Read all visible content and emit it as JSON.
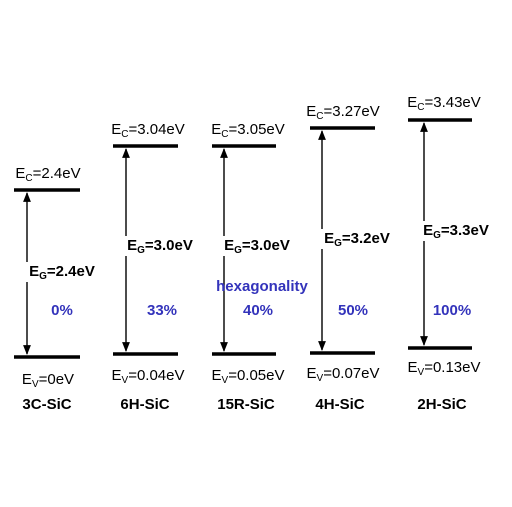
{
  "hexagonality_label": "hexagonality",
  "polytypes": [
    {
      "name": "3C-SiC",
      "ec_sub": "C",
      "ec_value": "=2.4eV",
      "ev_sub": "V",
      "ev_value": "=0eV",
      "eg_sub": "G",
      "eg_value": "=2.4eV",
      "hexagonality": "0%",
      "ec_ev": 2.4,
      "ev_ev": 0.0
    },
    {
      "name": "6H-SiC",
      "ec_sub": "C",
      "ec_value": "=3.04eV",
      "ev_sub": "V",
      "ev_value": "=0.04eV",
      "eg_sub": "G",
      "eg_value": "=3.0eV",
      "hexagonality": "33%",
      "ec_ev": 3.04,
      "ev_ev": 0.04
    },
    {
      "name": "15R-SiC",
      "ec_sub": "C",
      "ec_value": "=3.05eV",
      "ev_sub": "V",
      "ev_value": "=0.05eV",
      "eg_sub": "G",
      "eg_value": "=3.0eV",
      "hexagonality": "40%",
      "ec_ev": 3.05,
      "ev_ev": 0.05
    },
    {
      "name": "4H-SiC",
      "ec_sub": "C",
      "ec_value": "=3.27eV",
      "ev_sub": "V",
      "ev_value": "=0.07eV",
      "eg_sub": "G",
      "eg_value": "=3.2eV",
      "hexagonality": "50%",
      "ec_ev": 3.27,
      "ev_ev": 0.07
    },
    {
      "name": "2H-SiC",
      "ec_sub": "C",
      "ec_value": "=3.43eV",
      "ev_sub": "V",
      "ev_value": "=0.13eV",
      "eg_sub": "G",
      "eg_value": "=3.3eV",
      "hexagonality": "100%",
      "ec_ev": 3.43,
      "ev_ev": 0.13
    }
  ],
  "colors": {
    "hexagonality": "#3333bb",
    "lines": "#000000"
  }
}
